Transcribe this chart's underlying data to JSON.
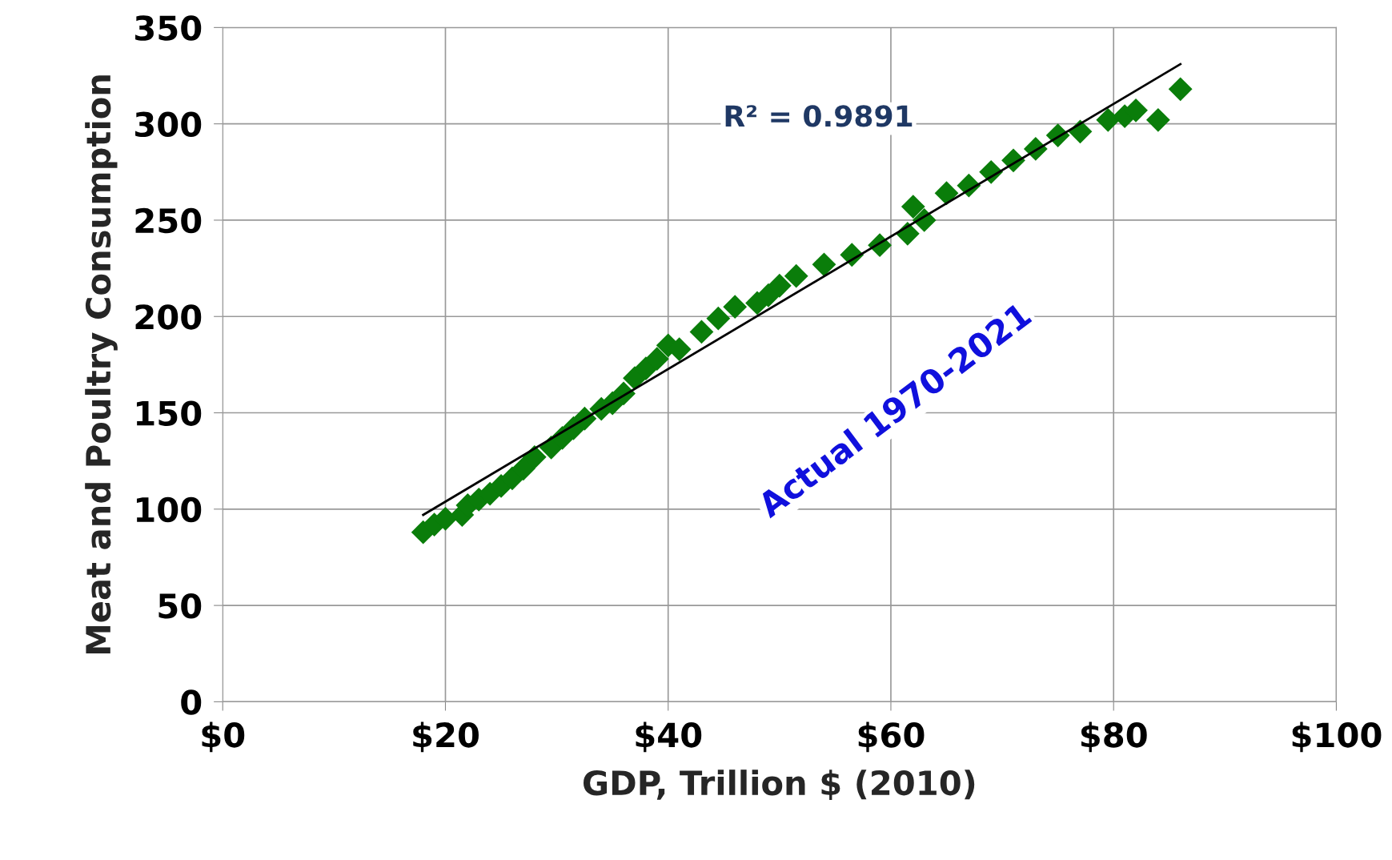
{
  "chart_data": {
    "type": "scatter",
    "xlabel": "GDP, Trillion $ (2010)",
    "ylabel": "Meat and Poultry Consumption",
    "xlim": [
      0,
      100
    ],
    "ylim": [
      0,
      350
    ],
    "xticks": [
      {
        "value": 0,
        "label": "$0"
      },
      {
        "value": 20,
        "label": "$20"
      },
      {
        "value": 40,
        "label": "$40"
      },
      {
        "value": 60,
        "label": "$60"
      },
      {
        "value": 80,
        "label": "$80"
      },
      {
        "value": 100,
        "label": "$100"
      }
    ],
    "yticks": [
      0,
      50,
      100,
      150,
      200,
      250,
      300,
      350
    ],
    "grid": true,
    "legend": false,
    "series": [
      {
        "marker": "diamond",
        "color": "#0a7d0a",
        "x": [
          18,
          19,
          20,
          21.5,
          22,
          23,
          24,
          25,
          26,
          27,
          28,
          29.5,
          30.5,
          31.5,
          32.5,
          34,
          35,
          36,
          36.5,
          37,
          38,
          39,
          40,
          41,
          43,
          44.5,
          46,
          48,
          49,
          50,
          51.5,
          54,
          56.5,
          59,
          61.5,
          62,
          62.5,
          63,
          65,
          67,
          69,
          71,
          73,
          75,
          77,
          79.5,
          81,
          82,
          84,
          86
        ],
        "values": [
          88,
          92,
          95,
          97,
          102,
          105,
          108,
          112,
          116,
          121,
          127,
          132,
          137,
          142,
          147,
          152,
          155,
          160,
          null,
          168,
          173,
          178,
          185,
          183,
          192,
          199,
          205,
          207,
          211,
          216,
          221,
          227,
          232,
          237,
          243,
          257,
          null,
          250,
          264,
          268,
          275,
          281,
          287,
          294,
          296,
          302,
          304,
          307,
          302,
          318
        ]
      },
      {
        "type": "line",
        "marker": "none",
        "line_style": "solid",
        "color": "#000000",
        "x": [
          18,
          86
        ],
        "values": [
          97,
          331
        ]
      }
    ],
    "annotations": [
      "R² = 0.9891",
      "Actual 1970-2021"
    ]
  }
}
